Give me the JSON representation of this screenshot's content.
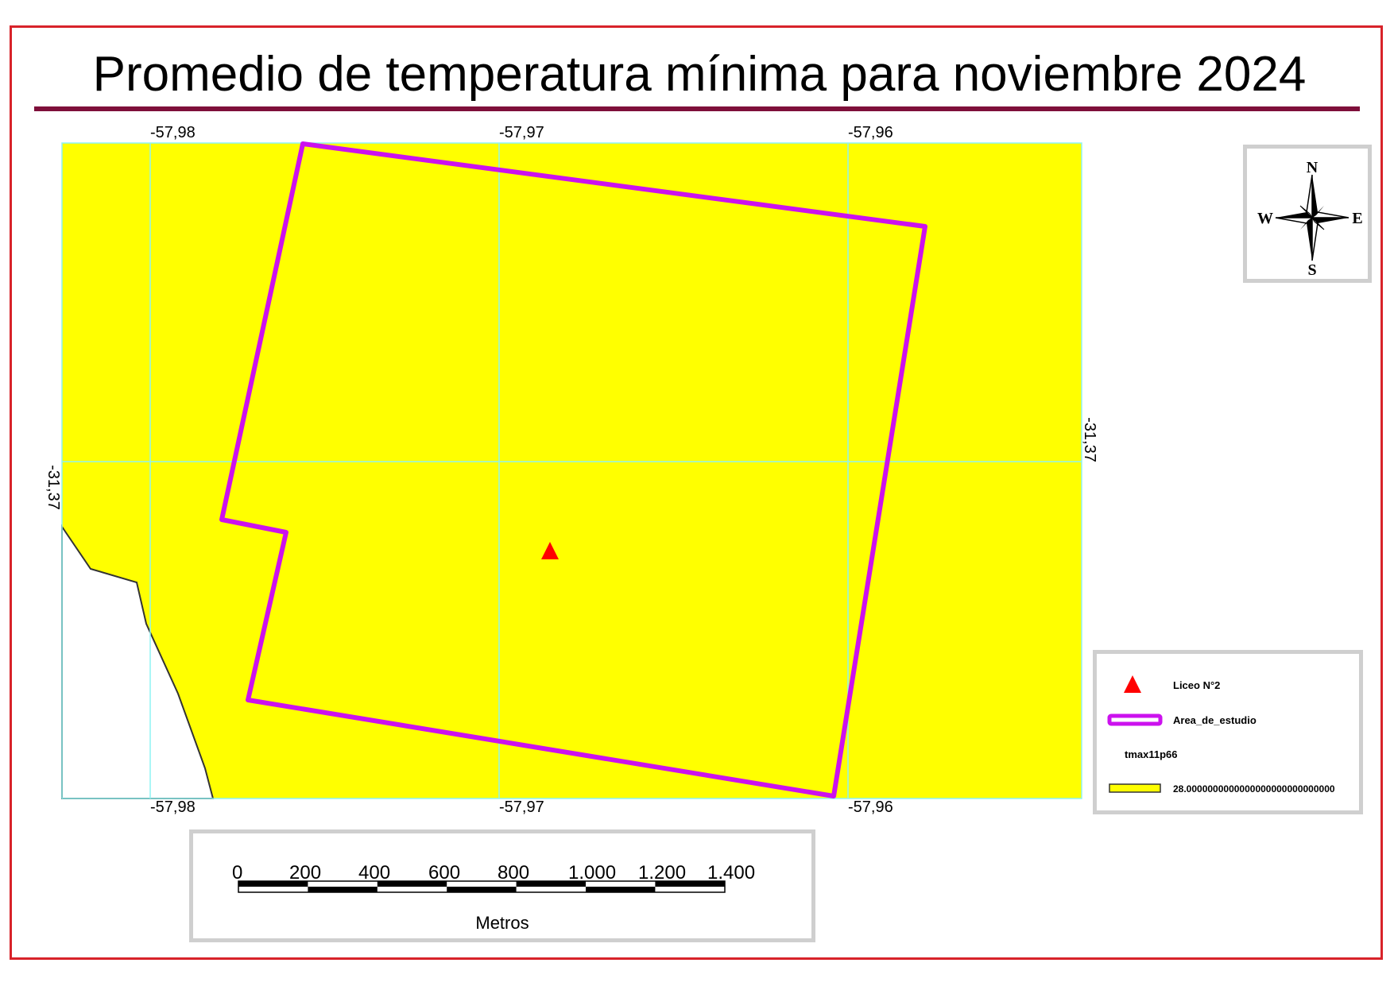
{
  "title": "Promedio de temperatura mínima para noviembre 2024",
  "grid": {
    "top_labels": [
      "-57,98",
      "-57,97",
      "-57,96"
    ],
    "bottom_labels": [
      "-57,98",
      "-57,97",
      "-57,96"
    ],
    "left_label": "-31,37",
    "right_label": "-31,37"
  },
  "north_arrow": {
    "n": "N",
    "s": "S",
    "e": "E",
    "w": "W"
  },
  "legend": {
    "point_label": "Liceo N°2",
    "area_label": "Area_de_estudio",
    "raster_title": "tmax11p66",
    "raster_value": "28.0000000000000000000000000000",
    "point_color": "#ff0000",
    "area_color": "#cc11ee",
    "raster_color": "#ffff00"
  },
  "scale_bar": {
    "ticks": [
      "0",
      "200",
      "400",
      "600",
      "800",
      "1.000",
      "1.200",
      "1.400"
    ],
    "unit": "Metros"
  },
  "colors": {
    "frame": "#d8232a",
    "title_rule": "#7e0f3a",
    "graticule": "#8ff3f3",
    "panel_border": "#cfcfcf"
  }
}
